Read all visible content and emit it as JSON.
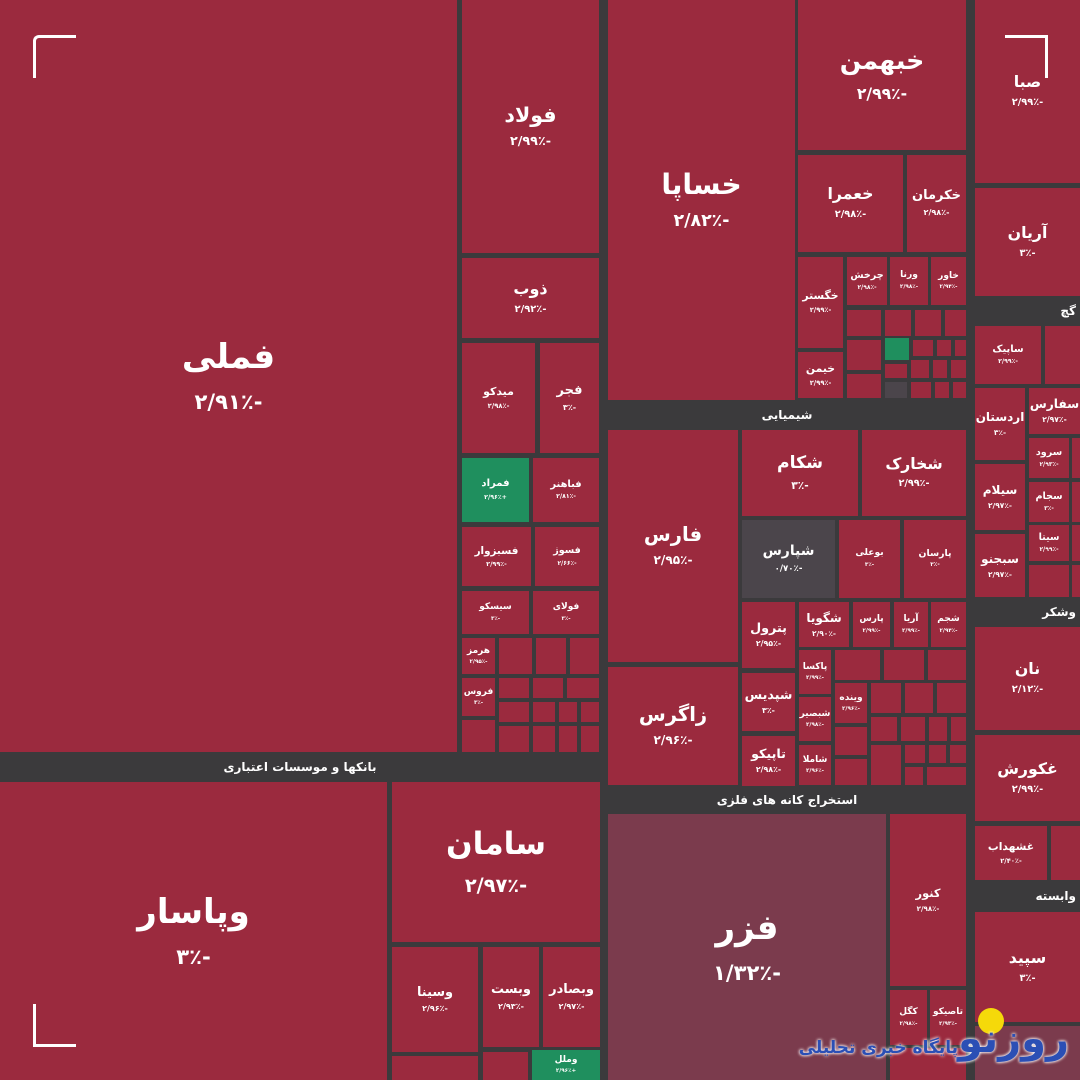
{
  "chart_data": {
    "type": "heatmap",
    "subtype": "treemap",
    "colors": {
      "negative": "#9b2a3e",
      "positive": "#1f8f5e",
      "neutral": "#4b454b",
      "mild_negative": "#7b3b4d",
      "background": "#3b3a3c"
    },
    "sectors": [
      "بانکها و موسسات اعتباری",
      "شیمیایی",
      "استخراج کانه های فلزی",
      "گچ",
      "وشکر",
      "وابسته"
    ],
    "tiles": [
      {
        "name": "فملی",
        "change": "-۲/۹۱٪"
      },
      {
        "name": "فولاد",
        "change": "-۲/۹۹٪"
      },
      {
        "name": "ذوب",
        "change": "-۲/۹۲٪"
      },
      {
        "name": "میدکو",
        "change": "-۲/۹۸٪"
      },
      {
        "name": "فجر",
        "change": "-۳٪"
      },
      {
        "name": "فمراد",
        "change": "+۲/۹۶٪",
        "tone": "positive"
      },
      {
        "name": "فباهنر",
        "change": "-۲/۸۱٪"
      },
      {
        "name": "فسبزوار",
        "change": "-۲/۹۹٪"
      },
      {
        "name": "فسوژ",
        "change": "-۲/۶۶٪"
      },
      {
        "name": "سیسکو",
        "change": "-۳٪"
      },
      {
        "name": "فولای",
        "change": "-۳٪"
      },
      {
        "name": "هرمز",
        "change": "-۲/۹۵٪"
      },
      {
        "name": "فروس",
        "change": "-۳٪"
      },
      {
        "name": "وپاسار",
        "change": "-۳٪"
      },
      {
        "name": "سامان",
        "change": "-۲/۹۷٪"
      },
      {
        "name": "وسینا",
        "change": "-۲/۹۶٪"
      },
      {
        "name": "وبست",
        "change": "-۲/۹۳٪"
      },
      {
        "name": "وبصادر",
        "change": "-۲/۹۷٪"
      },
      {
        "name": "وملل",
        "change": "+۲/۹۶٪",
        "tone": "positive"
      },
      {
        "name": "خساپا",
        "change": "-۲/۸۲٪"
      },
      {
        "name": "خبهمن",
        "change": "-۲/۹۹٪"
      },
      {
        "name": "خعمرا",
        "change": "-۲/۹۸٪"
      },
      {
        "name": "خکرمان",
        "change": "-۲/۹۸٪"
      },
      {
        "name": "خگستر",
        "change": "-۲/۹۹٪"
      },
      {
        "name": "چرخش",
        "change": "-۲/۹۸٪"
      },
      {
        "name": "ورنا",
        "change": "-۲/۹۸٪"
      },
      {
        "name": "خاور",
        "change": "-۲/۹۴٪"
      },
      {
        "name": "خیمن",
        "change": "-۲/۹۹٪"
      },
      {
        "name": "فارس",
        "change": "-۲/۹۵٪"
      },
      {
        "name": "زاگرس",
        "change": "-۲/۹۶٪"
      },
      {
        "name": "شکام",
        "change": "-۳٪"
      },
      {
        "name": "شخارک",
        "change": "-۲/۹۹٪"
      },
      {
        "name": "شپارس",
        "change": "-۰/۷۰٪",
        "tone": "neutral"
      },
      {
        "name": "بوعلی",
        "change": "-۳٪"
      },
      {
        "name": "پارسان",
        "change": "-۳٪"
      },
      {
        "name": "پترول",
        "change": "-۲/۹۵٪"
      },
      {
        "name": "شگویا",
        "change": "-۲/۹۰٪"
      },
      {
        "name": "پارس",
        "change": "-۲/۹۹٪"
      },
      {
        "name": "آریا",
        "change": "-۲/۹۹٪"
      },
      {
        "name": "شجم",
        "change": "-۲/۹۴٪"
      },
      {
        "name": "شپدیس",
        "change": "-۳٪"
      },
      {
        "name": "تاپیکو",
        "change": "-۲/۹۸٪"
      },
      {
        "name": "پاکسا",
        "change": "-۲/۹۹٪"
      },
      {
        "name": "شبصیر",
        "change": "-۲/۹۸٪"
      },
      {
        "name": "شاملا",
        "change": "-۲/۹۶٪"
      },
      {
        "name": "وینده",
        "change": "-۲/۹۶٪"
      },
      {
        "name": "فزر",
        "change": "-۱/۳۲٪",
        "tone": "mild_negative"
      },
      {
        "name": "کنور",
        "change": "-۲/۹۸٪"
      },
      {
        "name": "کگل",
        "change": "-۲/۹۸٪"
      },
      {
        "name": "تاصیکو",
        "change": "-۲/۹۳٪"
      },
      {
        "name": "صبا",
        "change": "-۲/۹۹٪"
      },
      {
        "name": "آریان",
        "change": "-۳٪"
      },
      {
        "name": "ساپیک",
        "change": "-۲/۹۹٪"
      },
      {
        "name": "اردستان",
        "change": "-۳٪"
      },
      {
        "name": "سفارس",
        "change": "-۲/۹۷٪"
      },
      {
        "name": "سرود",
        "change": "-۲/۹۳٪"
      },
      {
        "name": "سجام",
        "change": "-۳٪"
      },
      {
        "name": "سیتا",
        "change": "-۲/۹۹٪"
      },
      {
        "name": "سیلام",
        "change": "-۲/۹۷٪"
      },
      {
        "name": "سبجنو",
        "change": "-۲/۹۷٪"
      },
      {
        "name": "نان",
        "change": "-۲/۱۲٪"
      },
      {
        "name": "غکورش",
        "change": "-۲/۹۹٪"
      },
      {
        "name": "غشهداب",
        "change": "-۲/۴۰٪"
      },
      {
        "name": "سپید",
        "change": "-۳٪"
      }
    ]
  },
  "logo": {
    "brand": "روزنو",
    "tagline": "پایگاه خبری تحلیلی"
  }
}
